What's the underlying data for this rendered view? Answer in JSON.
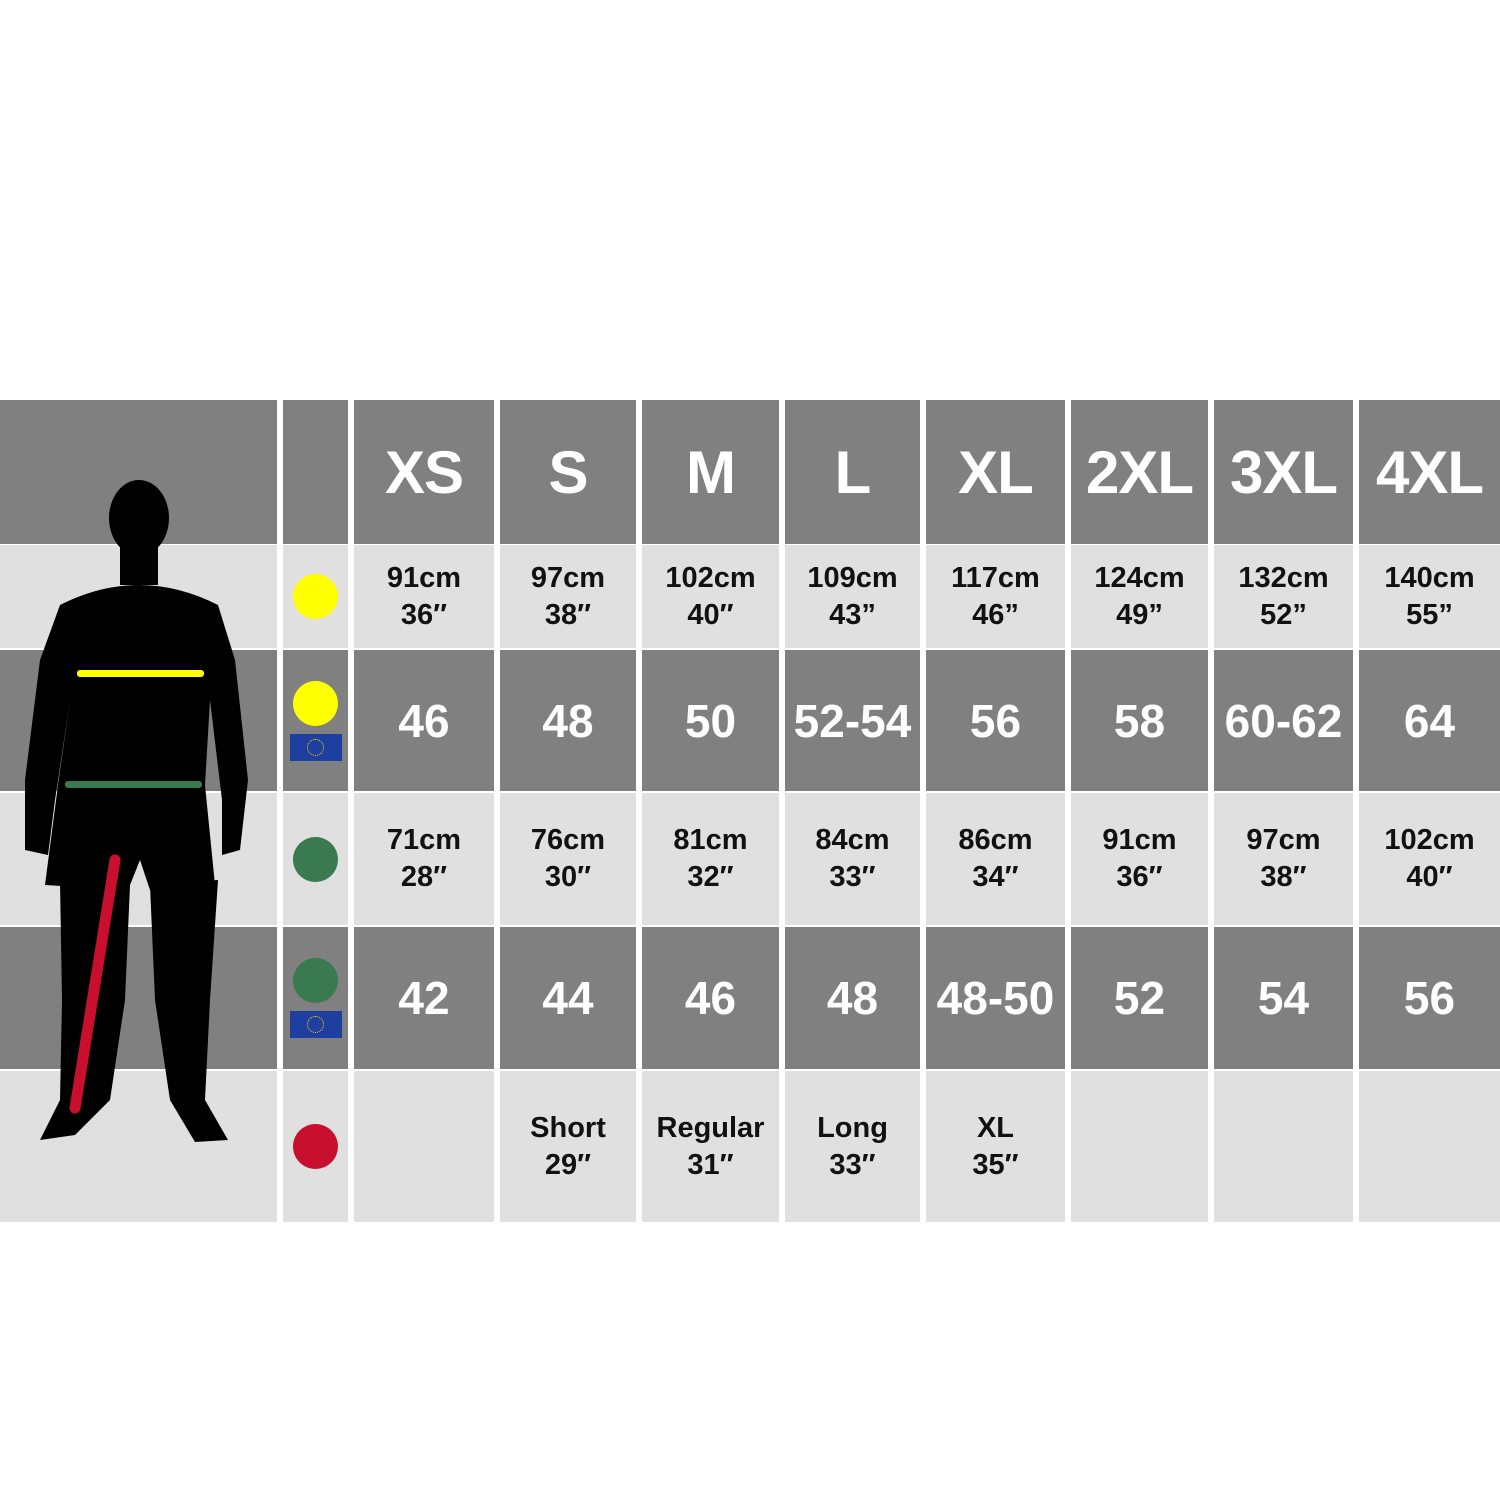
{
  "colors": {
    "header_bg": "#808080",
    "row_light": "#e0e0e0",
    "chest": "#ffff00",
    "waist": "#3a7a50",
    "leg": "#c8102e",
    "eu_flag": "#1f3fa0"
  },
  "sizes": [
    "XS",
    "S",
    "M",
    "L",
    "XL",
    "2XL",
    "3XL",
    "4XL"
  ],
  "rows": [
    {
      "icon": "chest-yellow-dot-icon",
      "flag": false,
      "values": [
        [
          "91cm",
          "36″"
        ],
        [
          "97cm",
          "38″"
        ],
        [
          "102cm",
          "40″"
        ],
        [
          "109cm",
          "43”"
        ],
        [
          "117cm",
          "46”"
        ],
        [
          "124cm",
          "49”"
        ],
        [
          "132cm",
          "52”"
        ],
        [
          "140cm",
          "55”"
        ]
      ]
    },
    {
      "icon": "chest-yellow-dot-eu-flag-icon",
      "flag": true,
      "values": [
        [
          "46"
        ],
        [
          "48"
        ],
        [
          "50"
        ],
        [
          "52-54"
        ],
        [
          "56"
        ],
        [
          "58"
        ],
        [
          "60-62"
        ],
        [
          "64"
        ]
      ]
    },
    {
      "icon": "waist-green-dot-icon",
      "flag": false,
      "values": [
        [
          "71cm",
          "28″"
        ],
        [
          "76cm",
          "30″"
        ],
        [
          "81cm",
          "32″"
        ],
        [
          "84cm",
          "33″"
        ],
        [
          "86cm",
          "34″"
        ],
        [
          "91cm",
          "36″"
        ],
        [
          "97cm",
          "38″"
        ],
        [
          "102cm",
          "40″"
        ]
      ]
    },
    {
      "icon": "waist-green-dot-eu-flag-icon",
      "flag": true,
      "values": [
        [
          "42"
        ],
        [
          "44"
        ],
        [
          "46"
        ],
        [
          "48"
        ],
        [
          "48-50"
        ],
        [
          "52"
        ],
        [
          "54"
        ],
        [
          "56"
        ]
      ]
    },
    {
      "icon": "leg-red-dot-icon",
      "flag": false,
      "values": [
        [],
        [
          "Short",
          "29″"
        ],
        [
          "Regular",
          "31″"
        ],
        [
          "Long",
          "33″"
        ],
        [
          "XL",
          "35″"
        ],
        [],
        [],
        []
      ]
    }
  ]
}
